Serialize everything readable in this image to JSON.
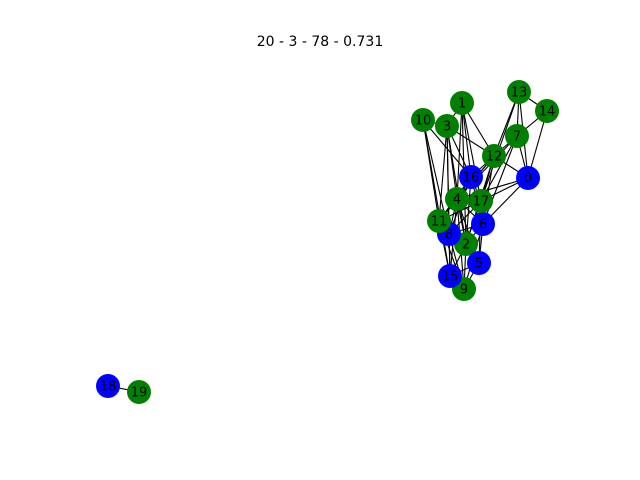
{
  "title": "20 - 3 - 78 - 0.731",
  "colors": {
    "group_a": "#008000",
    "group_b": "#0000ff",
    "edge": "#000000"
  },
  "nodes": [
    {
      "id": "0",
      "label": "0",
      "group": "group_b"
    },
    {
      "id": "1",
      "label": "1",
      "group": "group_a"
    },
    {
      "id": "2",
      "label": "2",
      "group": "group_a"
    },
    {
      "id": "3",
      "label": "3",
      "group": "group_a"
    },
    {
      "id": "4",
      "label": "4",
      "group": "group_a"
    },
    {
      "id": "5",
      "label": "5",
      "group": "group_b"
    },
    {
      "id": "6",
      "label": "6",
      "group": "group_b"
    },
    {
      "id": "7",
      "label": "7",
      "group": "group_a"
    },
    {
      "id": "8",
      "label": "8",
      "group": "group_b"
    },
    {
      "id": "9",
      "label": "9",
      "group": "group_a"
    },
    {
      "id": "10",
      "label": "10",
      "group": "group_a"
    },
    {
      "id": "11",
      "label": "11",
      "group": "group_a"
    },
    {
      "id": "12",
      "label": "12",
      "group": "group_a"
    },
    {
      "id": "13",
      "label": "13",
      "group": "group_a"
    },
    {
      "id": "14",
      "label": "14",
      "group": "group_a"
    },
    {
      "id": "15",
      "label": "15",
      "group": "group_b"
    },
    {
      "id": "16",
      "label": "16",
      "group": "group_b"
    },
    {
      "id": "17",
      "label": "17",
      "group": "group_a"
    },
    {
      "id": "18",
      "label": "18",
      "group": "group_b"
    },
    {
      "id": "19",
      "label": "19",
      "group": "group_a"
    }
  ],
  "edges": [
    [
      "18",
      "19"
    ],
    [
      "1",
      "3"
    ],
    [
      "1",
      "12"
    ],
    [
      "1",
      "16"
    ],
    [
      "1",
      "4"
    ],
    [
      "1",
      "17"
    ],
    [
      "3",
      "10"
    ],
    [
      "3",
      "12"
    ],
    [
      "3",
      "16"
    ],
    [
      "3",
      "4"
    ],
    [
      "3",
      "8"
    ],
    [
      "3",
      "2"
    ],
    [
      "10",
      "16"
    ],
    [
      "10",
      "11"
    ],
    [
      "10",
      "15"
    ],
    [
      "13",
      "14"
    ],
    [
      "13",
      "7"
    ],
    [
      "13",
      "12"
    ],
    [
      "13",
      "0"
    ],
    [
      "13",
      "17"
    ],
    [
      "14",
      "7"
    ],
    [
      "14",
      "0"
    ],
    [
      "7",
      "12"
    ],
    [
      "7",
      "0"
    ],
    [
      "7",
      "17"
    ],
    [
      "7",
      "4"
    ],
    [
      "12",
      "16"
    ],
    [
      "12",
      "17"
    ],
    [
      "12",
      "4"
    ],
    [
      "12",
      "0"
    ],
    [
      "12",
      "6"
    ],
    [
      "12",
      "11"
    ],
    [
      "16",
      "17"
    ],
    [
      "16",
      "4"
    ],
    [
      "16",
      "8"
    ],
    [
      "16",
      "2"
    ],
    [
      "16",
      "11"
    ],
    [
      "0",
      "17"
    ],
    [
      "0",
      "6"
    ],
    [
      "0",
      "4"
    ],
    [
      "4",
      "17"
    ],
    [
      "4",
      "11"
    ],
    [
      "4",
      "8"
    ],
    [
      "4",
      "2"
    ],
    [
      "4",
      "6"
    ],
    [
      "4",
      "5"
    ],
    [
      "4",
      "15"
    ],
    [
      "4",
      "9"
    ],
    [
      "17",
      "6"
    ],
    [
      "17",
      "8"
    ],
    [
      "17",
      "2"
    ],
    [
      "17",
      "11"
    ],
    [
      "17",
      "5"
    ],
    [
      "11",
      "8"
    ],
    [
      "11",
      "2"
    ],
    [
      "11",
      "15"
    ],
    [
      "11",
      "9"
    ],
    [
      "6",
      "8"
    ],
    [
      "6",
      "2"
    ],
    [
      "6",
      "5"
    ],
    [
      "6",
      "9"
    ],
    [
      "8",
      "2"
    ],
    [
      "8",
      "15"
    ],
    [
      "8",
      "9"
    ],
    [
      "8",
      "5"
    ],
    [
      "2",
      "5"
    ],
    [
      "2",
      "15"
    ],
    [
      "2",
      "9"
    ],
    [
      "5",
      "15"
    ],
    [
      "5",
      "9"
    ],
    [
      "15",
      "9"
    ],
    [
      "3",
      "11"
    ],
    [
      "10",
      "8"
    ],
    [
      "16",
      "6"
    ],
    [
      "12",
      "2"
    ],
    [
      "7",
      "6"
    ],
    [
      "1",
      "2"
    ],
    [
      "3",
      "15"
    ]
  ]
}
